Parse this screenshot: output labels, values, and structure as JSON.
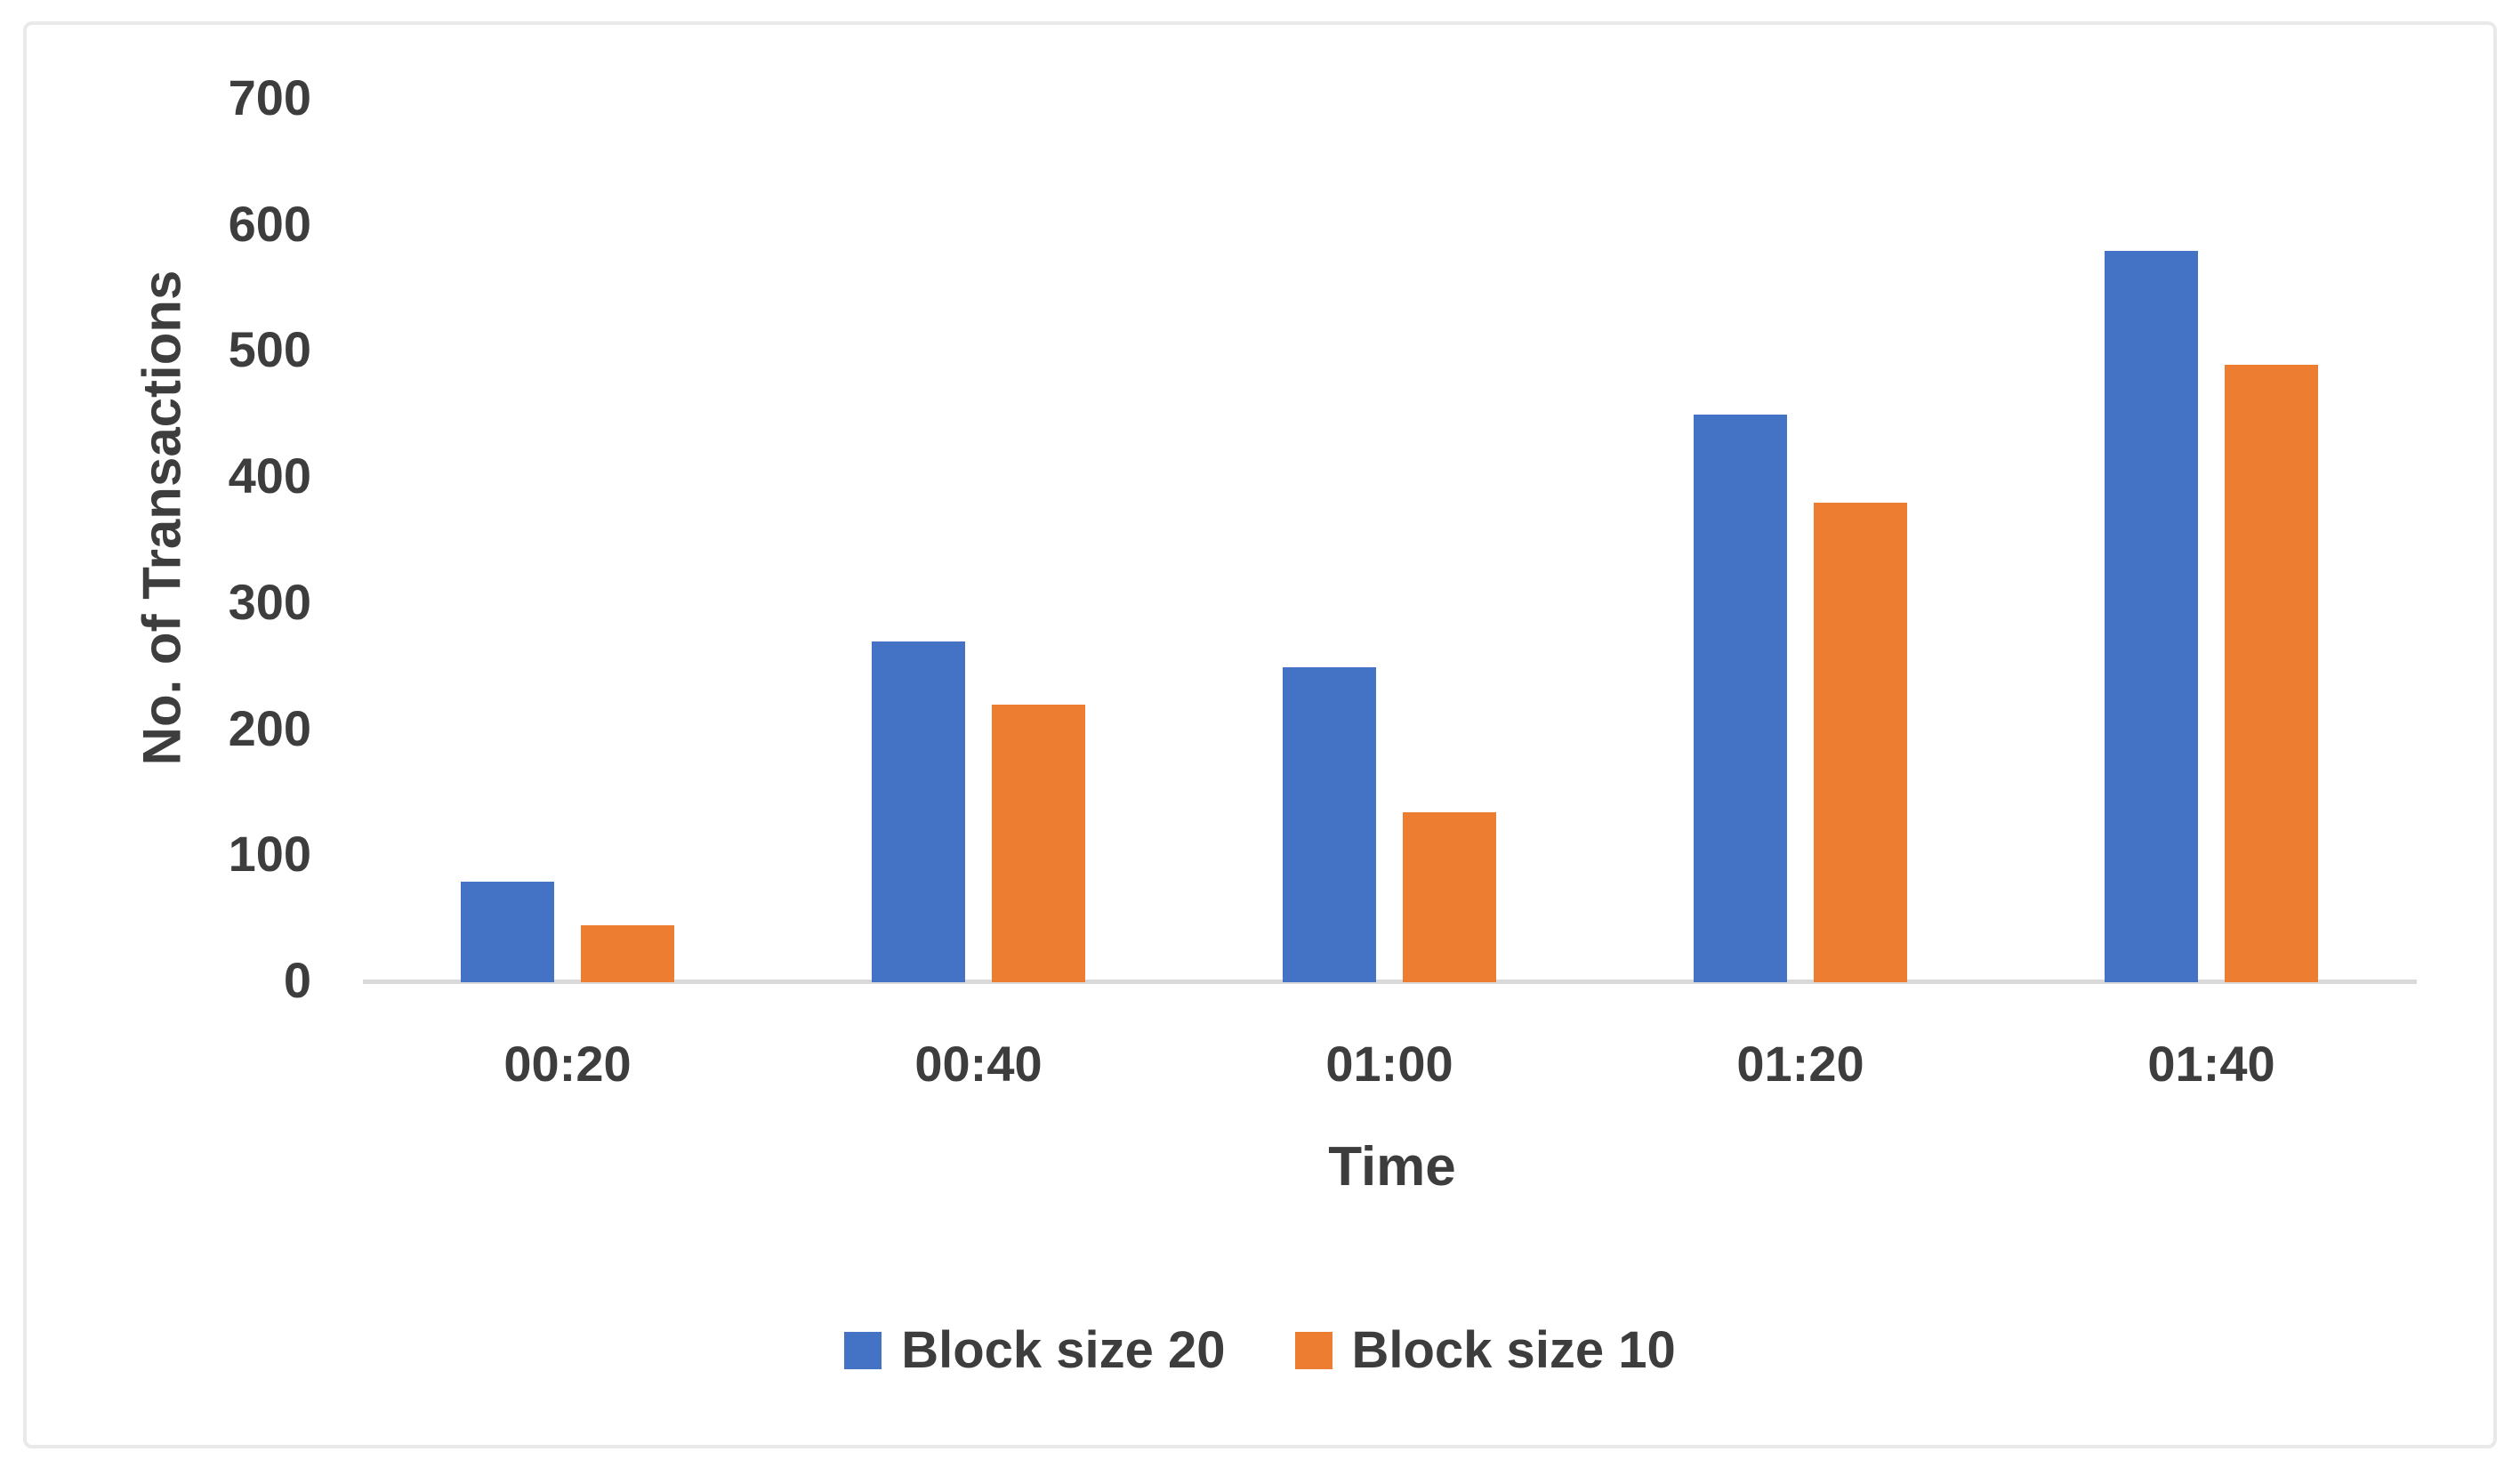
{
  "chart_data": {
    "type": "bar",
    "title": "",
    "xlabel": "Time",
    "ylabel": "No. of Transactions",
    "categories": [
      "00:20",
      "00:40",
      "01:00",
      "01:20",
      "01:40"
    ],
    "series": [
      {
        "name": "Block size 20",
        "color": "#4472C4",
        "values": [
          80,
          270,
          250,
          450,
          580
        ]
      },
      {
        "name": "Block size 10",
        "color": "#ED7D31",
        "values": [
          45,
          220,
          135,
          380,
          490
        ]
      }
    ],
    "ylim": [
      0,
      700
    ],
    "yticks": [
      0,
      100,
      200,
      300,
      400,
      500,
      600,
      700
    ],
    "grid": false,
    "legend_position": "bottom",
    "axis_line_color": "#d9d9d9",
    "text_color": "#3d3d3d"
  }
}
